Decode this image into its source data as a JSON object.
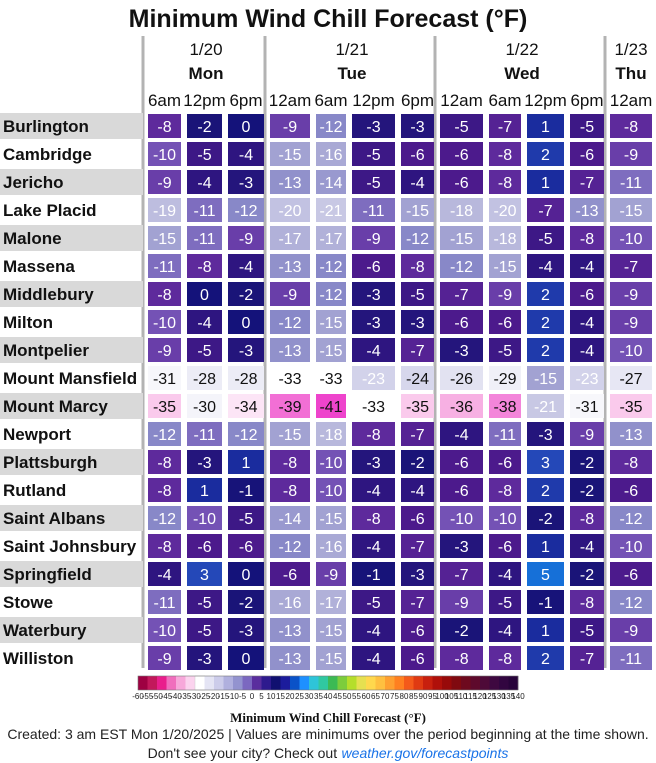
{
  "chart_data": {
    "type": "heatmap",
    "title": "Minimum Wind Chill Forecast (°F)",
    "days": [
      {
        "date": "1/20",
        "name": "Mon",
        "hours": [
          "6am",
          "12pm",
          "6pm"
        ]
      },
      {
        "date": "1/21",
        "name": "Tue",
        "hours": [
          "12am",
          "6am",
          "12pm",
          "6pm"
        ]
      },
      {
        "date": "1/22",
        "name": "Wed",
        "hours": [
          "12am",
          "6am",
          "12pm",
          "6pm"
        ]
      },
      {
        "date": "1/23",
        "name": "Thu",
        "hours": [
          "12am"
        ]
      }
    ],
    "rows": [
      {
        "city": "Burlington",
        "values": [
          -8,
          -2,
          0,
          -9,
          -12,
          -3,
          -3,
          -5,
          -7,
          1,
          -5,
          -8
        ]
      },
      {
        "city": "Cambridge",
        "values": [
          -10,
          -5,
          -4,
          -15,
          -16,
          -5,
          -6,
          -6,
          -8,
          2,
          -6,
          -9
        ]
      },
      {
        "city": "Jericho",
        "values": [
          -9,
          -4,
          -3,
          -13,
          -14,
          -5,
          -4,
          -6,
          -8,
          1,
          -7,
          -11
        ]
      },
      {
        "city": "Lake Placid",
        "values": [
          -19,
          -11,
          -12,
          -20,
          -21,
          -11,
          -15,
          -18,
          -20,
          -7,
          -13,
          -15
        ]
      },
      {
        "city": "Malone",
        "values": [
          -15,
          -11,
          -9,
          -17,
          -17,
          -9,
          -12,
          -15,
          -18,
          -5,
          -8,
          -10
        ]
      },
      {
        "city": "Massena",
        "values": [
          -11,
          -8,
          -4,
          -13,
          -12,
          -6,
          -8,
          -12,
          -15,
          -4,
          -4,
          -7
        ]
      },
      {
        "city": "Middlebury",
        "values": [
          -8,
          0,
          -2,
          -9,
          -12,
          -3,
          -5,
          -7,
          -9,
          2,
          -6,
          -9
        ]
      },
      {
        "city": "Milton",
        "values": [
          -10,
          -4,
          0,
          -12,
          -15,
          -3,
          -3,
          -6,
          -6,
          2,
          -4,
          -9
        ]
      },
      {
        "city": "Montpelier",
        "values": [
          -9,
          -5,
          -3,
          -13,
          -15,
          -4,
          -7,
          -3,
          -5,
          2,
          -4,
          -10
        ]
      },
      {
        "city": "Mount Mansfield",
        "values": [
          -31,
          -28,
          -28,
          -33,
          -33,
          -23,
          -24,
          -26,
          -29,
          -15,
          -23,
          -27
        ]
      },
      {
        "city": "Mount Marcy",
        "values": [
          -35,
          -30,
          -34,
          -39,
          -41,
          -33,
          -35,
          -36,
          -38,
          -21,
          -31,
          -35
        ]
      },
      {
        "city": "Newport",
        "values": [
          -12,
          -11,
          -12,
          -15,
          -18,
          -8,
          -7,
          -4,
          -11,
          -3,
          -9,
          -13
        ]
      },
      {
        "city": "Plattsburgh",
        "values": [
          -8,
          -3,
          1,
          -8,
          -10,
          -3,
          -2,
          -6,
          -6,
          3,
          -2,
          -8
        ]
      },
      {
        "city": "Rutland",
        "values": [
          -8,
          1,
          -1,
          -8,
          -10,
          -4,
          -4,
          -6,
          -8,
          2,
          -2,
          -6
        ]
      },
      {
        "city": "Saint Albans",
        "values": [
          -12,
          -10,
          -5,
          -14,
          -15,
          -8,
          -6,
          -10,
          -10,
          -2,
          -8,
          -12
        ]
      },
      {
        "city": "Saint Johnsbury",
        "values": [
          -8,
          -6,
          -6,
          -12,
          -16,
          -4,
          -7,
          -3,
          -6,
          1,
          -4,
          -10
        ]
      },
      {
        "city": "Springfield",
        "values": [
          -4,
          3,
          0,
          -6,
          -9,
          -1,
          -3,
          -7,
          -4,
          5,
          -2,
          -6
        ]
      },
      {
        "city": "Stowe",
        "values": [
          -11,
          -5,
          -2,
          -16,
          -17,
          -5,
          -7,
          -9,
          -5,
          -1,
          -8,
          -12
        ]
      },
      {
        "city": "Waterbury",
        "values": [
          -10,
          -5,
          -3,
          -13,
          -15,
          -4,
          -6,
          -2,
          -4,
          1,
          -5,
          -9
        ]
      },
      {
        "city": "Williston",
        "values": [
          -9,
          -3,
          0,
          -13,
          -15,
          -4,
          -6,
          -8,
          -8,
          2,
          -7,
          -11
        ]
      }
    ],
    "colorbar": {
      "title": "Minimum Wind Chill Forecast (°F)",
      "tick_labels": [
        "-60",
        "-55",
        "-50",
        "-45",
        "-40",
        "-35",
        "-30",
        "-25",
        "-20",
        "-15",
        "-10",
        "-5",
        "0",
        "5",
        "10",
        "15",
        "20",
        "25",
        "30",
        "35",
        "40",
        "45",
        "50",
        "55",
        "60",
        "65",
        "70",
        "75",
        "80",
        "85",
        "90",
        "95",
        "100",
        "105",
        "110",
        "115",
        "120",
        "125",
        "130",
        "135",
        "140"
      ],
      "colors": [
        "#9e0142",
        "#c2185b",
        "#e91e8c",
        "#f06ebd",
        "#f7a8da",
        "#fbd3ee",
        "#ffffff",
        "#e4e4f4",
        "#ccccea",
        "#b0b0de",
        "#9393cf",
        "#7b68c0",
        "#5a2e9e",
        "#2e1a8e",
        "#101070",
        "#1c1c9c",
        "#0a52c8",
        "#1e90ff",
        "#2ec4d8",
        "#30c8a0",
        "#3cba54",
        "#7ccd3c",
        "#b5de2b",
        "#e6e050",
        "#ffd84d",
        "#ffc040",
        "#ffa030",
        "#ff8020",
        "#f45a1a",
        "#e03a12",
        "#c8200e",
        "#b0100a",
        "#980a0a",
        "#800a10",
        "#6e0a1e",
        "#5e0a2c",
        "#4e0a38",
        "#3e0840",
        "#320640",
        "#28043a"
      ]
    },
    "colors": {
      "row_label_stripe": "#d9d9d9",
      "divider": "#b3b3b3",
      "cell_border": "#ffffff"
    }
  },
  "footer": {
    "created": "Created: 3 am EST Mon 1/20/2025  |  Values are minimums over the period beginning at the time shown.",
    "prompt": "Don't see your city? Check out",
    "link": "weather.gov/forecastpoints"
  }
}
